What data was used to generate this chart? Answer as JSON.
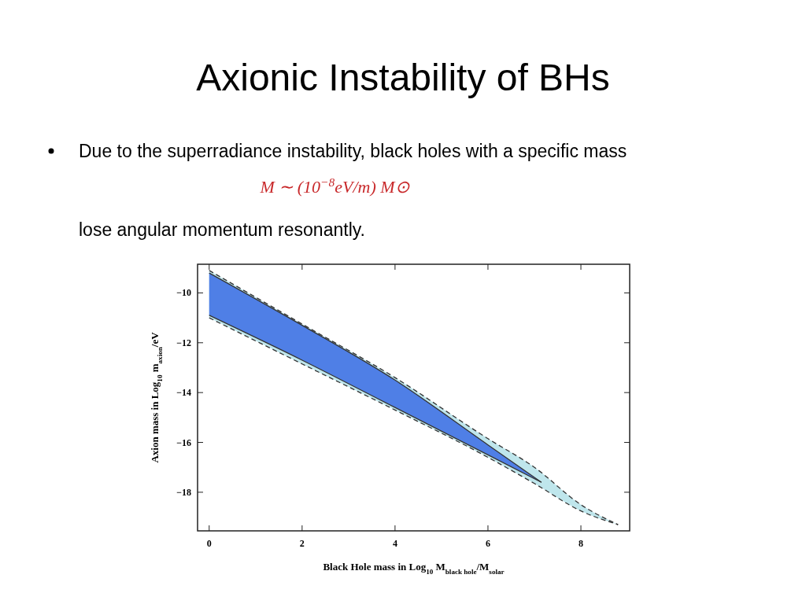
{
  "chart_data": {
    "type": "line",
    "title": "Axionic Instability of BHs",
    "subtitle": "Due to the superradiance  instability, black holes with a specific mass",
    "annotations": [
      "M ∼ (10$^{−8}$eV/m) M⊙",
      "lose angular momentum resonantly."
    ],
    "xlabel": "Black Hole mass in Log$_{10}$ M$_{black hole}$/M$_{solar}$",
    "ylabel": "Axion mass in Log$_{10}$ m$_{axion}$/eV",
    "xlim": [
      -0.25,
      9.05
    ],
    "ylim": [
      -19.55,
      -8.85
    ],
    "xticks": [
      0,
      2,
      4,
      6,
      8
    ],
    "yticks": [
      -10,
      -12,
      -14,
      -16,
      -18
    ],
    "grid": false,
    "series": [
      {
        "color": "#bfe6ec",
        "x": [
          0,
          2,
          4,
          6,
          7,
          8,
          8.8
        ],
        "values": [
          null,
          null,
          null,
          null,
          null,
          null,
          null
        ],
        "upper": [
          -9.1,
          -11.25,
          -13.4,
          -15.85,
          -17.0,
          -18.5,
          -19.3
        ],
        "lower": [
          -11.0,
          -12.85,
          -14.7,
          -16.6,
          -17.65,
          -18.75,
          -19.3
        ]
      },
      {
        "color": "#4f7fe6",
        "x": [
          0,
          2,
          4,
          6,
          7.15
        ],
        "values": [
          null,
          null,
          null,
          null,
          null
        ],
        "upper": [
          -9.2,
          -11.3,
          -13.5,
          -16.1,
          -17.6
        ],
        "lower": [
          -10.9,
          -12.7,
          -14.6,
          -16.5,
          -17.6
        ]
      },
      {
        "color": "#333333",
        "line_style": "dashed",
        "x": [
          0,
          2,
          4,
          6,
          7,
          8,
          8.8
        ],
        "values": [
          -9.1,
          -11.25,
          -13.4,
          -15.85,
          -17.0,
          -18.5,
          -19.3
        ]
      },
      {
        "color": "#333333",
        "line_style": "dashed",
        "x": [
          0,
          2,
          4,
          6,
          7,
          8,
          8.8
        ],
        "values": [
          -11.0,
          -12.85,
          -14.7,
          -16.6,
          -17.65,
          -18.75,
          -19.3
        ]
      },
      {
        "color": "#333333",
        "line_style": "solid",
        "x": [
          0,
          2,
          4,
          6,
          7.15
        ],
        "values": [
          -9.2,
          -11.3,
          -13.5,
          -16.1,
          -17.6
        ]
      },
      {
        "color": "#333333",
        "line_style": "solid",
        "x": [
          0,
          2,
          4,
          6,
          7.15
        ],
        "values": [
          -10.9,
          -12.7,
          -14.6,
          -16.5,
          -17.6
        ]
      }
    ]
  }
}
